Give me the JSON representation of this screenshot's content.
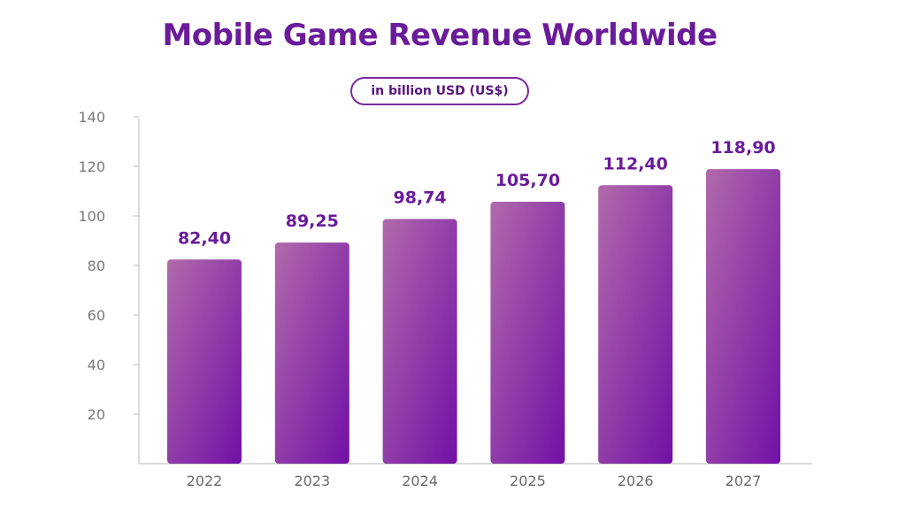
{
  "title": "Mobile Game Revenue Worldwide",
  "unit_label": "in billion USD (US$)",
  "colors": {
    "title": "#6a1b9a",
    "bar_top": "#b06aab",
    "bar_bottom": "#7210a6",
    "axis": "#cfcfcf"
  },
  "chart_data": {
    "type": "bar",
    "title": "Mobile Game Revenue Worldwide",
    "subtitle": "in billion USD (US$)",
    "categories": [
      "2022",
      "2023",
      "2024",
      "2025",
      "2026",
      "2027"
    ],
    "values": [
      82.4,
      89.25,
      98.74,
      105.7,
      112.4,
      118.9
    ],
    "value_labels": [
      "82,40",
      "89,25",
      "98,74",
      "105,70",
      "112,40",
      "118,90"
    ],
    "y_ticks": [
      "20",
      "40",
      "60",
      "80",
      "100",
      "120",
      "140"
    ],
    "ylim": [
      0,
      140
    ],
    "xlabel": "",
    "ylabel": "",
    "grid": false,
    "legend": "none"
  }
}
